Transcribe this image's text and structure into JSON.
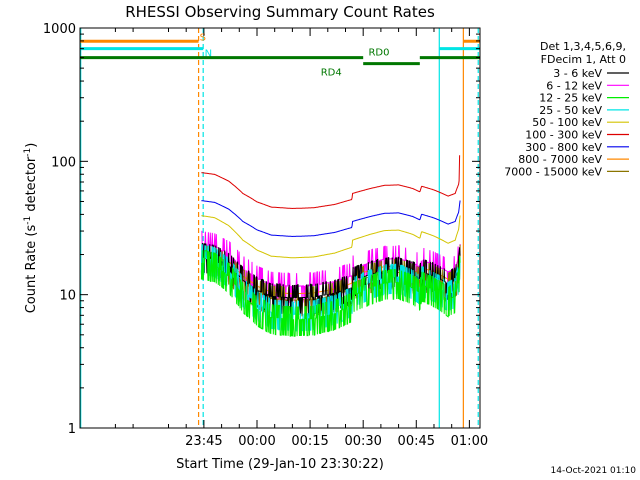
{
  "chart_data": {
    "type": "line",
    "title": "RHESSI Observing Summary Count Rates",
    "xlabel": "Start Time (29-Jan-10 23:30:22)",
    "ylabel": "Count Rate (s",
    "ylabel_sup": "-1",
    "ylabel_tail": " detector",
    "ylabel_end": ")",
    "y_scale": "log",
    "ylim": [
      1,
      1000
    ],
    "y_ticks": [
      {
        "value": 1,
        "label": "1"
      },
      {
        "value": 10,
        "label": "10"
      },
      {
        "value": 100,
        "label": "100"
      },
      {
        "value": 1000,
        "label": "1000"
      }
    ],
    "xlim_minutes": [
      -20,
      93
    ],
    "x_ticks": [
      {
        "minute": 15,
        "label": "23:45"
      },
      {
        "minute": 30,
        "label": "00:00"
      },
      {
        "minute": 45,
        "label": "00:15"
      },
      {
        "minute": 60,
        "label": "00:30"
      },
      {
        "minute": 75,
        "label": "00:45"
      },
      {
        "minute": 90,
        "label": "01:00"
      }
    ],
    "legend_header": [
      "Det 1,3,4,5,6,9,",
      "FDecim 1, Att 0"
    ],
    "legend_placement": "right",
    "series": [
      {
        "name": "3 - 6 keV",
        "color": "#000000",
        "base": 13.5,
        "noise": 0.22
      },
      {
        "name": "6 - 12 keV",
        "color": "#ff00ff",
        "base": 16.5,
        "noise": 0.18
      },
      {
        "name": "12 - 25 keV",
        "color": "#00ee00",
        "base": 10.5,
        "noise": 0.35
      },
      {
        "name": "25 - 50 keV",
        "color": "#00e5e5",
        "base": 11.5,
        "noise": 0.28
      },
      {
        "name": "50 - 100 keV",
        "color": "#d4c400",
        "base": 27,
        "noise": 0.12
      },
      {
        "name": "100 - 300 keV",
        "color": "#dd0000",
        "base": 60,
        "noise": 0.06
      },
      {
        "name": "300 - 800 keV",
        "color": "#0000ee",
        "base": 37,
        "noise": 0.07
      },
      {
        "name": "800 - 7000 keV",
        "color": "#ff8800",
        "base": 14.5,
        "noise": 0.12
      },
      {
        "name": "7000 - 15000 keV",
        "color": "#8b7500",
        "base": 13,
        "noise": 0.2
      }
    ],
    "data_start_minute": 14.3,
    "data_end_minute": 87.5,
    "profile_points": [
      [
        14.3,
        1.45
      ],
      [
        18,
        1.4
      ],
      [
        22,
        1.22
      ],
      [
        26,
        0.95
      ],
      [
        30,
        0.8
      ],
      [
        34,
        0.72
      ],
      [
        40,
        0.7
      ],
      [
        46,
        0.71
      ],
      [
        52,
        0.76
      ],
      [
        56.8,
        0.84
      ],
      [
        57,
        0.95
      ],
      [
        62,
        1.05
      ],
      [
        66,
        1.12
      ],
      [
        70,
        1.13
      ],
      [
        74,
        1.05
      ],
      [
        76,
        0.98
      ],
      [
        76.5,
        1.1
      ],
      [
        80,
        1.02
      ],
      [
        84,
        0.9
      ],
      [
        86,
        0.95
      ],
      [
        87,
        1.15
      ],
      [
        87.5,
        1.55
      ]
    ],
    "spike_minute": 87.3,
    "vertical_lines": [
      {
        "minute": -19.8,
        "color": "#00e5e5",
        "style": "solid"
      },
      {
        "minute": 13.5,
        "color": "#ff8800",
        "style": "dashed"
      },
      {
        "minute": 14.8,
        "color": "#00e5e5",
        "style": "dashed"
      },
      {
        "minute": 81.5,
        "color": "#00e5e5",
        "style": "solid"
      },
      {
        "minute": 88.3,
        "color": "#ff8800",
        "style": "solid"
      },
      {
        "minute": 92.5,
        "color": "#00e5e5",
        "style": "dashed"
      }
    ],
    "flag_bars": [
      {
        "label": "S",
        "color": "#ff8800",
        "segments": [
          [
            -20,
            13.5
          ],
          [
            88.3,
            95
          ]
        ],
        "y_level": 795,
        "label_minute": 13.8
      },
      {
        "label": "N",
        "color": "#00e5e5",
        "segments": [
          [
            -20,
            14.8
          ],
          [
            81.5,
            95
          ]
        ],
        "y_level": 700,
        "label_minute": 15.2
      },
      {
        "label": "RD0",
        "color": "#007700",
        "segments": [
          [
            -20,
            60
          ],
          [
            76,
            95
          ]
        ],
        "y_level": 600,
        "label_minute": 61.5
      },
      {
        "label": "RD4",
        "color": "#007700",
        "segments": [
          [
            60,
            76
          ]
        ],
        "y_level": 540,
        "label_minute": 48
      }
    ],
    "timestamp": "14-Oct-2021 01:10"
  }
}
